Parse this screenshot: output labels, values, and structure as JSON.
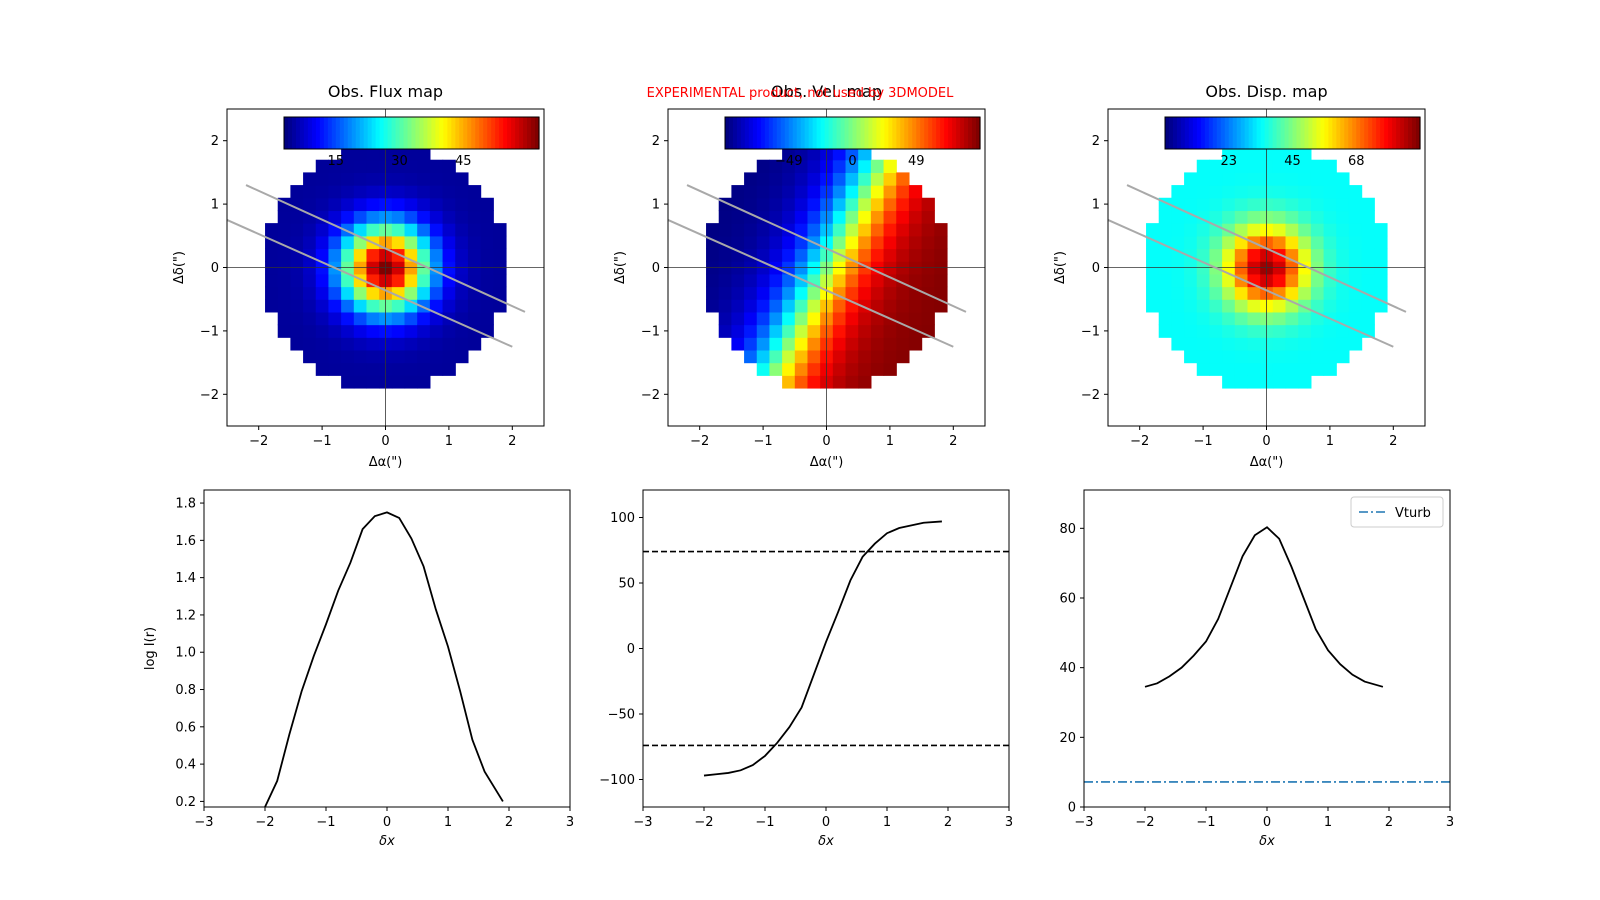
{
  "watermark": "EXPERIMENTAL product, not used by 3DMODEL",
  "chart_data": [
    {
      "type": "heatmap",
      "title": "Obs. Flux map",
      "xlabel": "Δα(\")",
      "ylabel": "Δδ(\")",
      "xlim": [
        -2.5,
        2.5
      ],
      "ylim": [
        -2.5,
        2.5
      ],
      "xticks": [
        -2,
        -1,
        0,
        1,
        2
      ],
      "yticks": [
        -2,
        -1,
        0,
        1,
        2
      ],
      "colormap": "jet",
      "colorbar_ticks": [
        "15",
        "30",
        "45"
      ],
      "field": {
        "kind": "flux",
        "vmax": 58,
        "sigma": 0.48,
        "base": 1.5
      },
      "grid_radius": 2.0,
      "slit_lines": [
        [
          [
            -2.2,
            1.3
          ],
          [
            2.2,
            -0.7
          ]
        ],
        [
          [
            -2.5,
            0.75
          ],
          [
            2.0,
            -1.25
          ]
        ]
      ],
      "slit_color": "#a9a9a9"
    },
    {
      "type": "heatmap",
      "title": "Obs. Vel. map",
      "xlabel": "Δα(\")",
      "ylabel": "Δδ(\")",
      "xlim": [
        -2.5,
        2.5
      ],
      "ylim": [
        -2.5,
        2.5
      ],
      "xticks": [
        -2,
        -1,
        0,
        1,
        2
      ],
      "yticks": [
        -2,
        -1,
        0,
        1,
        2
      ],
      "colormap": "jet",
      "colorbar_ticks": [
        "−49",
        "0",
        "49"
      ],
      "field": {
        "kind": "velocity",
        "vmin": -98,
        "vmax": 98,
        "pa_deg": 27,
        "vscale": 0.7
      },
      "grid_radius": 2.0,
      "slit_lines": [
        [
          [
            -2.2,
            1.3
          ],
          [
            2.2,
            -0.7
          ]
        ],
        [
          [
            -2.5,
            0.75
          ],
          [
            2.0,
            -1.25
          ]
        ]
      ],
      "slit_color": "#a9a9a9"
    },
    {
      "type": "heatmap",
      "title": "Obs. Disp. map",
      "xlabel": "Δα(\")",
      "ylabel": "Δδ(\")",
      "xlim": [
        -2.5,
        2.5
      ],
      "ylim": [
        -2.5,
        2.5
      ],
      "xticks": [
        -2,
        -1,
        0,
        1,
        2
      ],
      "yticks": [
        -2,
        -1,
        0,
        1,
        2
      ],
      "colormap": "jet",
      "colorbar_ticks": [
        "23",
        "45",
        "68"
      ],
      "field": {
        "kind": "dispersion",
        "vmin": 8,
        "vmax": 82,
        "base": 36,
        "peak": 80,
        "sigma": 0.45
      },
      "grid_radius": 2.0,
      "slit_lines": [
        [
          [
            -2.2,
            1.3
          ],
          [
            2.2,
            -0.7
          ]
        ],
        [
          [
            -2.5,
            0.75
          ],
          [
            2.0,
            -1.25
          ]
        ]
      ],
      "slit_color": "#a9a9a9"
    },
    {
      "type": "line",
      "title": "",
      "xlabel": "δx",
      "ylabel": "log I(r)",
      "xlim": [
        -3,
        3
      ],
      "ylim": [
        0.17,
        1.87
      ],
      "xticks": [
        -3,
        -2,
        -1,
        0,
        1,
        2,
        3
      ],
      "yticks": [
        0.2,
        0.4,
        0.6,
        0.8,
        1.0,
        1.2,
        1.4,
        1.6,
        1.8
      ],
      "ytick_labels": [
        "0.2",
        "0.4",
        "0.6",
        "0.8",
        "1.0",
        "1.2",
        "1.4",
        "1.6",
        "1.8"
      ],
      "series": [
        {
          "color": "#000000",
          "style": "solid",
          "x": [
            -2.0,
            -1.8,
            -1.6,
            -1.4,
            -1.2,
            -1.0,
            -0.8,
            -0.6,
            -0.4,
            -0.2,
            0.0,
            0.2,
            0.4,
            0.6,
            0.8,
            1.0,
            1.2,
            1.4,
            1.6,
            1.9
          ],
          "y": [
            0.17,
            0.31,
            0.56,
            0.79,
            0.98,
            1.15,
            1.33,
            1.48,
            1.66,
            1.73,
            1.75,
            1.72,
            1.61,
            1.46,
            1.23,
            1.03,
            0.79,
            0.53,
            0.36,
            0.2
          ]
        }
      ]
    },
    {
      "type": "line",
      "title": "",
      "xlabel": "δx",
      "ylabel": "",
      "xlim": [
        -3,
        3
      ],
      "ylim": [
        -121,
        121
      ],
      "xticks": [
        -3,
        -2,
        -1,
        0,
        1,
        2,
        3
      ],
      "yticks": [
        -100,
        -50,
        0,
        50,
        100
      ],
      "ytick_labels": [
        "−100",
        "−50",
        "0",
        "50",
        "100"
      ],
      "hlines": [
        {
          "y": 74,
          "style": "dashed",
          "color": "#000000"
        },
        {
          "y": -74,
          "style": "dashed",
          "color": "#000000"
        }
      ],
      "series": [
        {
          "color": "#000000",
          "style": "solid",
          "x": [
            -2.0,
            -1.8,
            -1.6,
            -1.4,
            -1.2,
            -1.0,
            -0.8,
            -0.6,
            -0.4,
            -0.2,
            0.0,
            0.2,
            0.4,
            0.6,
            0.8,
            1.0,
            1.2,
            1.4,
            1.6,
            1.9
          ],
          "y": [
            -97,
            -96,
            -95,
            -93,
            -89,
            -82,
            -72,
            -60,
            -45,
            -20,
            5,
            28,
            52,
            70,
            80,
            88,
            92,
            94,
            96,
            97
          ]
        }
      ]
    },
    {
      "type": "line",
      "title": "",
      "xlabel": "δx",
      "ylabel": "",
      "xlim": [
        -3,
        3
      ],
      "ylim": [
        0,
        91
      ],
      "xticks": [
        -3,
        -2,
        -1,
        0,
        1,
        2,
        3
      ],
      "yticks": [
        0,
        20,
        40,
        60,
        80
      ],
      "ytick_labels": [
        "0",
        "20",
        "40",
        "60",
        "80"
      ],
      "legend": {
        "position": "top-right",
        "entries": [
          "Vturb"
        ]
      },
      "hlines": [
        {
          "y": 7.2,
          "style": "dashdot",
          "color": "#1f77b4",
          "name": "Vturb"
        }
      ],
      "series": [
        {
          "color": "#000000",
          "style": "solid",
          "x": [
            -2.0,
            -1.8,
            -1.6,
            -1.4,
            -1.2,
            -1.0,
            -0.8,
            -0.6,
            -0.4,
            -0.2,
            0.0,
            0.2,
            0.4,
            0.6,
            0.8,
            1.0,
            1.2,
            1.4,
            1.6,
            1.9
          ],
          "y": [
            34.5,
            35.5,
            37.5,
            40,
            43.5,
            47.5,
            54,
            63,
            72,
            78,
            80.3,
            77,
            69,
            60,
            51,
            45,
            41,
            38,
            36,
            34.5
          ]
        }
      ]
    }
  ]
}
